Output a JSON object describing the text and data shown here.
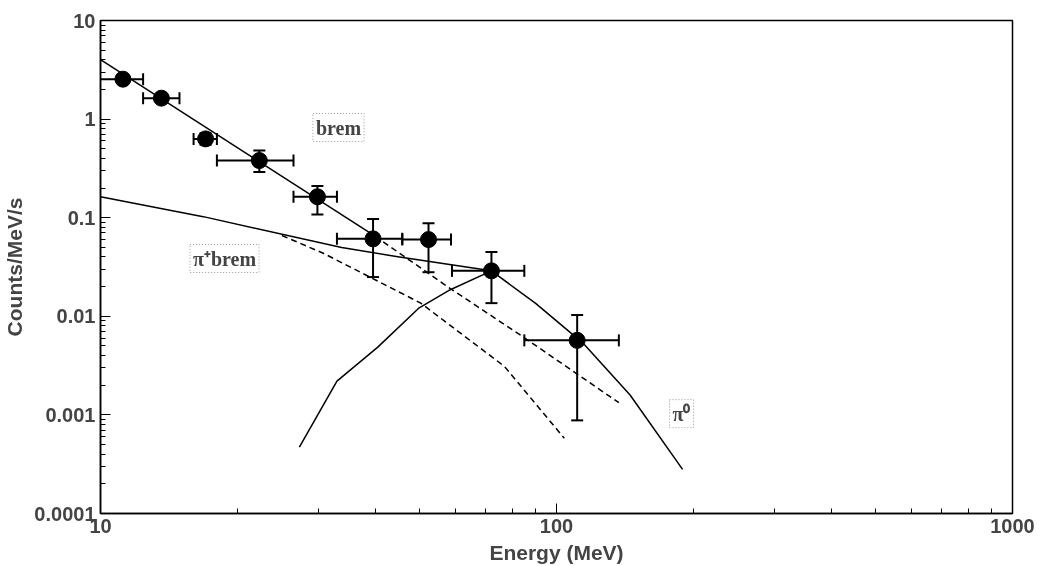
{
  "chart_data": {
    "type": "scatter",
    "xlabel": "Energy (MeV)",
    "ylabel": "Counts/MeV/s",
    "log": "xy",
    "xlim": [
      10,
      1000
    ],
    "ylim": [
      0.0001,
      10
    ],
    "xticks": [
      10,
      100,
      1000
    ],
    "yticks": [
      0.0001,
      0.001,
      0.01,
      0.1,
      1,
      10
    ],
    "grid": false,
    "series": [
      {
        "marker": "circle",
        "color": "#000000",
        "x": [
          11.2,
          13.6,
          17.0,
          22.3,
          29.9,
          39.6,
          52.4,
          72,
          111
        ],
        "values": [
          2.54,
          1.63,
          0.63,
          0.38,
          0.163,
          0.061,
          0.06,
          0.0289,
          0.0057
        ],
        "errors": [
          null,
          null,
          [
            0.55,
            0.72
          ],
          [
            0.29,
            0.48
          ],
          [
            0.108,
            0.21
          ],
          [
            0.025,
            0.097
          ],
          [
            0.028,
            0.088
          ],
          [
            0.0136,
            0.045
          ],
          [
            0.00088,
            0.0103
          ]
        ],
        "xerrors": [
          [
            9.9,
            12.4
          ],
          [
            12.4,
            14.9
          ],
          [
            16.0,
            18.0
          ],
          [
            18.0,
            26.5
          ],
          [
            26.5,
            33.0
          ],
          [
            33.0,
            45.9
          ],
          [
            45.9,
            58.7
          ],
          [
            59,
            85
          ],
          [
            85,
            137
          ]
        ]
      },
      {
        "type": "line",
        "line_style": "solid",
        "color": "#000000",
        "x": [
          10,
          40
        ],
        "values": [
          4.0,
          0.065
        ]
      },
      {
        "type": "line",
        "line_style": "dashed",
        "color": "#000000",
        "x": [
          40,
          58.5,
          84,
          137
        ],
        "values": [
          0.065,
          0.0191,
          0.0063,
          0.00133
        ]
      },
      {
        "type": "line",
        "line_style": "solid",
        "color": "#000000",
        "x": [
          10,
          16.8,
          33.8,
          44.5,
          72
        ],
        "values": [
          0.163,
          0.1025,
          0.0498,
          0.0405,
          0.0289
        ]
      },
      {
        "type": "line",
        "line_style": "dashed",
        "color": "#000000",
        "x": [
          25,
          30.8,
          50.4,
          76.9,
          104
        ],
        "values": [
          0.066,
          0.0436,
          0.0136,
          0.0031,
          0.00058
        ]
      },
      {
        "type": "line",
        "line_style": "solid",
        "color": "#000000",
        "x": [
          27.3,
          33,
          40.5,
          50,
          58.5,
          72,
          90,
          114.8,
          145,
          189
        ],
        "values": [
          0.00047,
          0.0022,
          0.00484,
          0.0122,
          0.0186,
          0.0289,
          0.0135,
          0.00525,
          0.00159,
          0.00028
        ]
      }
    ],
    "annotations": [
      "brem",
      "π⁺brem",
      {
        "text": "π⁰",
        "x": 188,
        "y": 0.00103
      }
    ]
  }
}
